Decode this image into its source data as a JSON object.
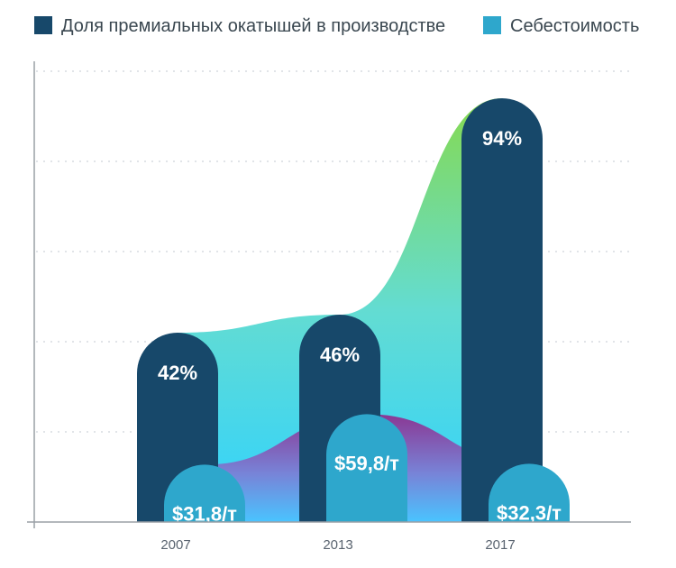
{
  "chart_data": {
    "type": "bar",
    "title": "",
    "xlabel": "",
    "ylabel": "",
    "categories": [
      "2007",
      "2013",
      "2017"
    ],
    "ylim": [
      0,
      100
    ],
    "grid": true,
    "legend_position": "top",
    "series": [
      {
        "name": "Доля премиальных окатышей в производстве",
        "color": "#17486a",
        "values": [
          42,
          46,
          94
        ],
        "labels": [
          "42%",
          "46%",
          "94%"
        ]
      },
      {
        "name": "Себестоимость",
        "color": "#2ea7cc",
        "values": [
          31.8,
          59.8,
          32.3
        ],
        "labels": [
          "$31,8/т",
          "$59,8/т",
          "$32,3/т"
        ]
      }
    ]
  }
}
